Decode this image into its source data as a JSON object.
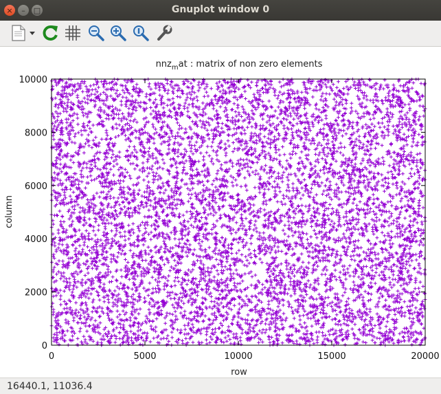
{
  "window": {
    "title": "Gnuplot window 0",
    "close_glyph": "×",
    "minimize_glyph": "–",
    "maximize_glyph": "□"
  },
  "toolbar": {
    "buttons": [
      {
        "name": "copy-to-clipboard-button",
        "icon": "document-copy-icon"
      },
      {
        "name": "replot-button",
        "icon": "refresh-icon"
      },
      {
        "name": "toggle-grid-button",
        "icon": "grid-icon"
      },
      {
        "name": "zoom-previous-button",
        "icon": "zoom-out-icon"
      },
      {
        "name": "zoom-next-button",
        "icon": "zoom-in-icon"
      },
      {
        "name": "unzoom-button",
        "icon": "zoom-reset-icon"
      },
      {
        "name": "settings-button",
        "icon": "wrench-icon"
      }
    ]
  },
  "plot": {
    "title_main": "nnz",
    "title_sub": "m",
    "title_rest": "at : matrix of non zero elements",
    "point_color": "#9400d3"
  },
  "chart_data": {
    "type": "scatter",
    "xlabel": "row",
    "ylabel": "column",
    "xlim": [
      0,
      20000
    ],
    "ylim": [
      0,
      10000
    ],
    "xticks": [
      "0",
      "5000",
      "10000",
      "15000",
      "20000"
    ],
    "yticks": [
      "0",
      "2000",
      "4000",
      "6000",
      "8000",
      "10000"
    ],
    "xtick_values": [
      0,
      5000,
      10000,
      15000,
      20000
    ],
    "ytick_values": [
      0,
      2000,
      4000,
      6000,
      8000,
      10000
    ],
    "series": [
      {
        "marker": "+",
        "color": "#9400d3",
        "distribution": "dense uniform random scatter over the full axis range"
      }
    ]
  },
  "status": {
    "coordinates": "16440.1,  11036.4"
  }
}
